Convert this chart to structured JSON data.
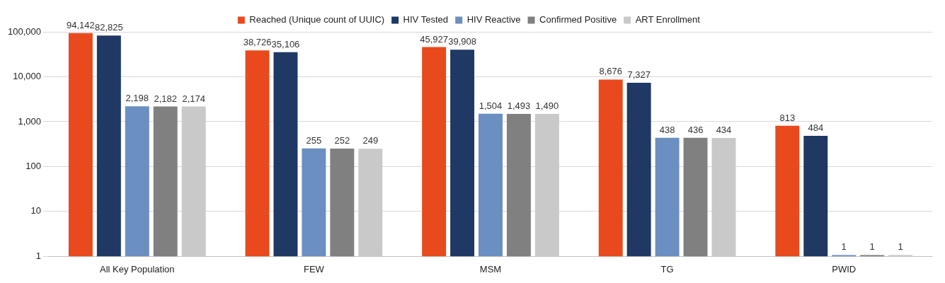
{
  "chart_data": {
    "type": "bar",
    "categories": [
      "All Key Population",
      "FEW",
      "MSM",
      "TG",
      "PWID"
    ],
    "series": [
      {
        "name": "Reached (Unique count of UUIC)",
        "color": "#e8491d",
        "values": [
          94142,
          38726,
          45927,
          8676,
          813
        ],
        "value_labels": [
          "94,142",
          "38,726",
          "45,927",
          "8,676",
          "813"
        ]
      },
      {
        "name": "HIV Tested",
        "color": "#1f3864",
        "values": [
          82825,
          35106,
          39908,
          7327,
          484
        ],
        "value_labels": [
          "82,825",
          "35,106",
          "39,908",
          "7,327",
          "484"
        ]
      },
      {
        "name": "HIV Reactive",
        "color": "#6a8fc0",
        "values": [
          2198,
          255,
          1504,
          438,
          1
        ],
        "value_labels": [
          "2,198",
          "255",
          "1,504",
          "438",
          "1"
        ]
      },
      {
        "name": "Confirmed Positive",
        "color": "#808080",
        "values": [
          2182,
          252,
          1493,
          436,
          1
        ],
        "value_labels": [
          "2,182",
          "252",
          "1,493",
          "436",
          "1"
        ]
      },
      {
        "name": "ART Enrollment",
        "color": "#c9c9c9",
        "values": [
          2174,
          249,
          1490,
          434,
          1
        ],
        "value_labels": [
          "2,174",
          "249",
          "1,490",
          "434",
          "1"
        ]
      }
    ],
    "log": true,
    "ylim": [
      1,
      100000
    ],
    "yticks": [
      {
        "value": 1,
        "label": "1"
      },
      {
        "value": 10,
        "label": "10"
      },
      {
        "value": 100,
        "label": "100"
      },
      {
        "value": 1000,
        "label": "1,000"
      },
      {
        "value": 10000,
        "label": "10,000"
      },
      {
        "value": 100000,
        "label": "100,000"
      }
    ],
    "grid": "y",
    "legend": "top"
  }
}
